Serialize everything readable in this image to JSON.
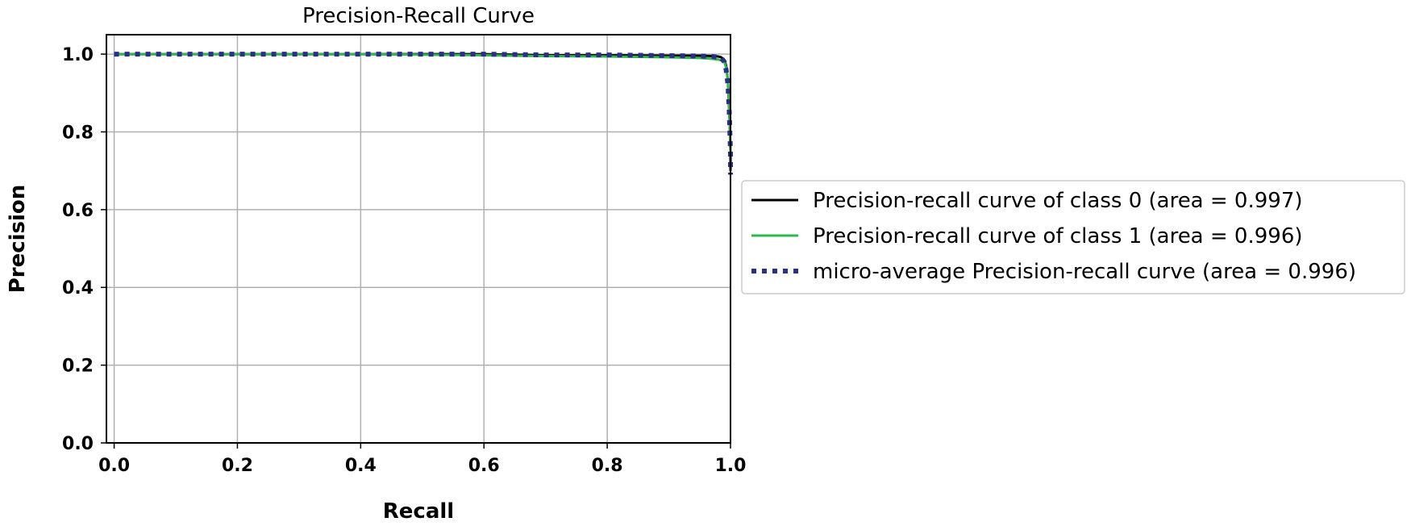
{
  "chart_data": {
    "type": "line",
    "title": "Precision-Recall Curve",
    "xlabel": "Recall",
    "ylabel": "Precision",
    "xlim": [
      0.0,
      1.0
    ],
    "ylim": [
      0.0,
      1.0
    ],
    "xticks": [
      "0.0",
      "0.2",
      "0.4",
      "0.6",
      "0.8",
      "1.0"
    ],
    "yticks": [
      "0.0",
      "0.2",
      "0.4",
      "0.6",
      "0.8",
      "1.0"
    ],
    "grid": true,
    "legend_position": "outside right",
    "series": [
      {
        "name": "Precision-recall curve of class 0 (area = 0.997)",
        "color": "#000000",
        "style": "solid",
        "x": [
          0.0,
          0.2,
          0.4,
          0.6,
          0.7,
          0.8,
          0.9,
          0.95,
          0.97,
          0.98,
          0.985,
          0.99,
          0.993,
          0.996,
          0.998,
          1.0,
          1.0
        ],
        "y": [
          1.0,
          1.0,
          1.0,
          1.0,
          0.997,
          0.997,
          0.996,
          0.996,
          0.995,
          0.994,
          0.992,
          0.985,
          0.97,
          0.93,
          0.85,
          0.75,
          0.7
        ]
      },
      {
        "name": "Precision-recall curve of class 1 (area = 0.996)",
        "color": "#2db84b",
        "style": "solid",
        "x": [
          0.0,
          0.2,
          0.4,
          0.6,
          0.7,
          0.8,
          0.9,
          0.95,
          0.97,
          0.98,
          0.985,
          0.99,
          0.993,
          0.996,
          0.998,
          1.0,
          1.0
        ],
        "y": [
          1.0,
          1.0,
          1.0,
          0.997,
          0.995,
          0.994,
          0.992,
          0.99,
          0.988,
          0.986,
          0.984,
          0.98,
          0.965,
          0.93,
          0.85,
          0.76,
          0.74
        ]
      },
      {
        "name": "micro-average Precision-recall curve (area = 0.996)",
        "color": "#2c2f86",
        "style": "dotted",
        "x": [
          0.0,
          0.2,
          0.4,
          0.6,
          0.7,
          0.8,
          0.9,
          0.95,
          0.97,
          0.98,
          0.985,
          0.99,
          0.993,
          0.996,
          0.998,
          1.0,
          1.0
        ],
        "y": [
          1.0,
          1.0,
          1.0,
          1.0,
          0.998,
          0.998,
          0.996,
          0.995,
          0.994,
          0.992,
          0.99,
          0.98,
          0.96,
          0.92,
          0.85,
          0.75,
          0.69
        ]
      }
    ]
  }
}
